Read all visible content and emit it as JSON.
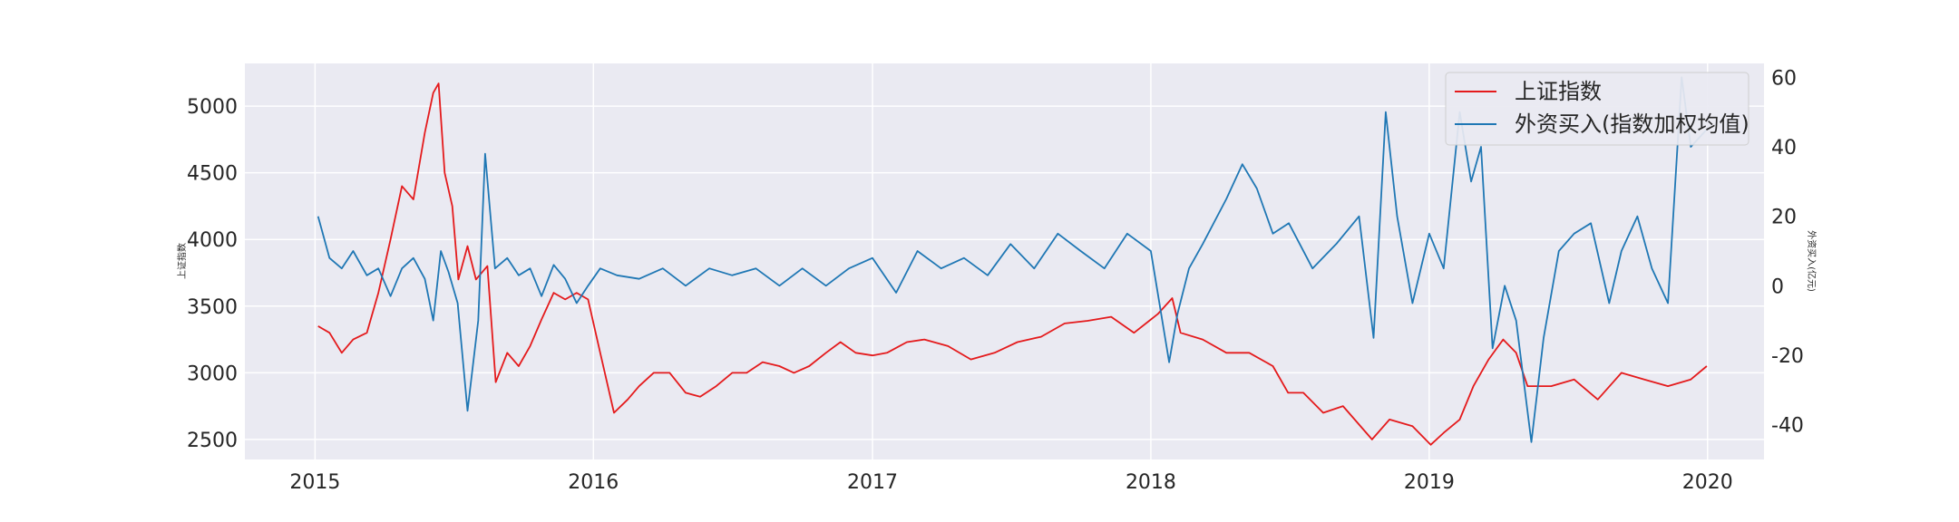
{
  "chart_data": {
    "type": "line",
    "ylabel_left": "上证指数",
    "ylabel_right": "外资买入(亿元)",
    "xlim": [
      "2014-10-01",
      "2020-03-15"
    ],
    "ylim_left": [
      2350,
      5320
    ],
    "ylim_right": [
      -50,
      64
    ],
    "x_ticks": [
      {
        "date": "2015-01-01",
        "label": "2015"
      },
      {
        "date": "2016-01-01",
        "label": "2016"
      },
      {
        "date": "2017-01-01",
        "label": "2017"
      },
      {
        "date": "2018-01-01",
        "label": "2018"
      },
      {
        "date": "2019-01-01",
        "label": "2019"
      },
      {
        "date": "2020-01-01",
        "label": "2020"
      }
    ],
    "y_ticks_left": [
      "2500",
      "3000",
      "3500",
      "4000",
      "4500",
      "5000"
    ],
    "y_ticks_right": [
      "-40",
      "-20",
      "0",
      "20",
      "40",
      "60"
    ],
    "grid": true,
    "legend_position": "top-right",
    "colors": {
      "background": "#eaeaf2",
      "grid": "#ffffff",
      "series_1": "#e41a1c",
      "series_2": "#1f77b4"
    },
    "series": [
      {
        "name": "上证指数",
        "axis": "left",
        "x": [
          "2015-01-05",
          "2015-01-20",
          "2015-02-05",
          "2015-02-20",
          "2015-03-10",
          "2015-03-25",
          "2015-04-10",
          "2015-04-25",
          "2015-05-10",
          "2015-05-25",
          "2015-06-05",
          "2015-06-12",
          "2015-06-20",
          "2015-06-30",
          "2015-07-08",
          "2015-07-20",
          "2015-07-31",
          "2015-08-15",
          "2015-08-26",
          "2015-09-10",
          "2015-09-25",
          "2015-10-10",
          "2015-10-25",
          "2015-11-10",
          "2015-11-25",
          "2015-12-10",
          "2015-12-25",
          "2016-01-10",
          "2016-01-28",
          "2016-02-15",
          "2016-03-01",
          "2016-03-20",
          "2016-04-10",
          "2016-05-01",
          "2016-05-20",
          "2016-06-10",
          "2016-07-01",
          "2016-07-20",
          "2016-08-10",
          "2016-09-01",
          "2016-09-20",
          "2016-10-10",
          "2016-11-01",
          "2016-11-20",
          "2016-12-10",
          "2017-01-01",
          "2017-01-20",
          "2017-02-15",
          "2017-03-10",
          "2017-04-10",
          "2017-05-10",
          "2017-06-10",
          "2017-07-10",
          "2017-08-10",
          "2017-09-10",
          "2017-10-10",
          "2017-11-10",
          "2017-12-10",
          "2018-01-10",
          "2018-01-29",
          "2018-02-09",
          "2018-03-10",
          "2018-04-10",
          "2018-05-10",
          "2018-06-10",
          "2018-06-30",
          "2018-07-20",
          "2018-08-15",
          "2018-09-10",
          "2018-10-18",
          "2018-11-10",
          "2018-12-10",
          "2019-01-03",
          "2019-01-20",
          "2019-02-10",
          "2019-02-28",
          "2019-03-20",
          "2019-04-08",
          "2019-04-25",
          "2019-05-10",
          "2019-06-10",
          "2019-07-10",
          "2019-08-10",
          "2019-09-10",
          "2019-10-10",
          "2019-11-10",
          "2019-12-10",
          "2019-12-31"
        ],
        "values": [
          3350,
          3300,
          3150,
          3250,
          3300,
          3600,
          4000,
          4400,
          4300,
          4800,
          5100,
          5170,
          4500,
          4250,
          3700,
          3950,
          3700,
          3800,
          2930,
          3150,
          3050,
          3200,
          3400,
          3600,
          3550,
          3600,
          3550,
          3150,
          2700,
          2800,
          2900,
          3000,
          3000,
          2850,
          2820,
          2900,
          3000,
          3000,
          3080,
          3050,
          3000,
          3050,
          3150,
          3230,
          3150,
          3130,
          3150,
          3230,
          3250,
          3200,
          3100,
          3150,
          3230,
          3270,
          3370,
          3390,
          3420,
          3300,
          3440,
          3560,
          3300,
          3250,
          3150,
          3150,
          3050,
          2850,
          2850,
          2700,
          2750,
          2500,
          2650,
          2600,
          2460,
          2550,
          2650,
          2900,
          3100,
          3250,
          3150,
          2900,
          2900,
          2950,
          2800,
          3000,
          2950,
          2900,
          2950,
          3050
        ]
      },
      {
        "name": "外资买入(指数加权均值)",
        "axis": "right",
        "x": [
          "2015-01-05",
          "2015-01-20",
          "2015-02-05",
          "2015-02-20",
          "2015-03-10",
          "2015-03-25",
          "2015-04-10",
          "2015-04-25",
          "2015-05-10",
          "2015-05-25",
          "2015-06-05",
          "2015-06-15",
          "2015-06-25",
          "2015-07-07",
          "2015-07-20",
          "2015-08-03",
          "2015-08-12",
          "2015-08-25",
          "2015-09-10",
          "2015-09-25",
          "2015-10-10",
          "2015-10-25",
          "2015-11-10",
          "2015-11-25",
          "2015-12-10",
          "2015-12-25",
          "2016-01-10",
          "2016-02-01",
          "2016-03-01",
          "2016-04-01",
          "2016-05-01",
          "2016-06-01",
          "2016-07-01",
          "2016-08-01",
          "2016-09-01",
          "2016-10-01",
          "2016-11-01",
          "2016-12-01",
          "2017-01-01",
          "2017-02-01",
          "2017-03-01",
          "2017-04-01",
          "2017-05-01",
          "2017-06-01",
          "2017-07-01",
          "2017-08-01",
          "2017-09-01",
          "2017-10-01",
          "2017-11-01",
          "2017-12-01",
          "2018-01-01",
          "2018-01-25",
          "2018-02-05",
          "2018-02-20",
          "2018-03-10",
          "2018-04-10",
          "2018-05-01",
          "2018-05-20",
          "2018-06-10",
          "2018-07-01",
          "2018-08-01",
          "2018-09-01",
          "2018-10-01",
          "2018-10-20",
          "2018-11-05",
          "2018-11-20",
          "2018-12-10",
          "2019-01-01",
          "2019-01-20",
          "2019-02-10",
          "2019-02-25",
          "2019-03-10",
          "2019-03-25",
          "2019-04-10",
          "2019-04-25",
          "2019-05-15",
          "2019-05-31",
          "2019-06-20",
          "2019-07-10",
          "2019-08-01",
          "2019-08-25",
          "2019-09-10",
          "2019-10-01",
          "2019-10-20",
          "2019-11-10",
          "2019-11-28",
          "2019-12-10",
          "2019-12-31"
        ],
        "values": [
          20,
          8,
          5,
          10,
          3,
          5,
          -3,
          5,
          8,
          2,
          -10,
          10,
          4,
          -5,
          -36,
          -10,
          38,
          5,
          8,
          3,
          5,
          -3,
          6,
          2,
          -5,
          0,
          5,
          3,
          2,
          5,
          0,
          5,
          3,
          5,
          0,
          5,
          0,
          5,
          8,
          -2,
          10,
          5,
          8,
          3,
          12,
          5,
          15,
          10,
          5,
          15,
          10,
          -22,
          -8,
          5,
          12,
          25,
          35,
          28,
          15,
          18,
          5,
          12,
          20,
          -15,
          50,
          20,
          -5,
          15,
          5,
          50,
          30,
          40,
          -18,
          0,
          -10,
          -45,
          -15,
          10,
          15,
          18,
          -5,
          10,
          20,
          5,
          -5,
          60,
          40,
          45
        ]
      }
    ]
  }
}
